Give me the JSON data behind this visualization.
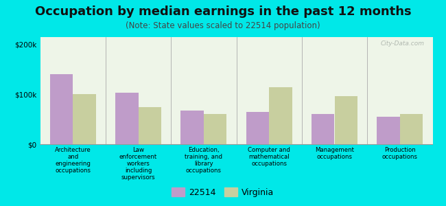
{
  "title": "Occupation by median earnings in the past 12 months",
  "subtitle": "(Note: State values scaled to 22514 population)",
  "categories": [
    "Architecture\nand\nengineering\noccupations",
    "Law\nenforcement\nworkers\nincluding\nsupervisors",
    "Education,\ntraining, and\nlibrary\noccupations",
    "Computer and\nmathematical\noccupations",
    "Management\noccupations",
    "Production\noccupations"
  ],
  "values_22514": [
    140000,
    103000,
    68000,
    65000,
    60000,
    55000
  ],
  "values_virginia": [
    100000,
    75000,
    60000,
    115000,
    97000,
    60000
  ],
  "color_22514": "#bf9cc9",
  "color_virginia": "#c8cf9f",
  "bar_width": 0.35,
  "ylim": [
    0,
    215000
  ],
  "yticks": [
    0,
    100000,
    200000
  ],
  "ytick_labels": [
    "$0",
    "$100k",
    "$200k"
  ],
  "legend_label_22514": "22514",
  "legend_label_virginia": "Virginia",
  "background_color": "#00e8e8",
  "plot_bg": "#f2f7ec",
  "watermark": "City-Data.com",
  "title_fontsize": 13,
  "subtitle_fontsize": 8.5,
  "tick_fontsize": 7.5,
  "legend_fontsize": 9
}
